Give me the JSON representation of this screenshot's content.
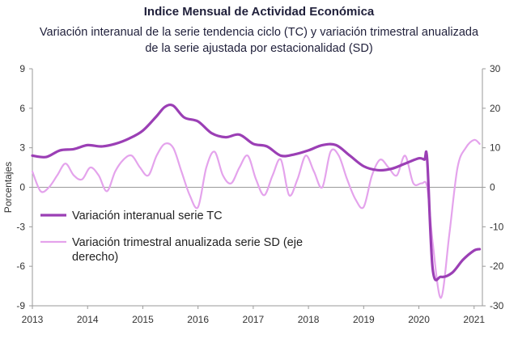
{
  "title": "Indice Mensual de  Actividad Económica",
  "subtitle_line1": "Variación interanual de la serie tendencia ciclo (TC) y variación trimestral anualizada",
  "subtitle_line2": "de la serie ajustada por estacionalidad (SD)",
  "chart_data": {
    "type": "line",
    "ylabel": "Porcentajes",
    "ylim": [
      -9,
      9
    ],
    "y2lim": [
      -30,
      30
    ],
    "y_ticks": [
      "9",
      "6",
      "3",
      "0",
      "-3",
      "-6",
      "-9"
    ],
    "y2_ticks": [
      "30",
      "20",
      "10",
      "0",
      "-10",
      "-20",
      "-30"
    ],
    "x_ticks": [
      "2013",
      "2014",
      "2015",
      "2016",
      "2017",
      "2018",
      "2019",
      "2020",
      "2021"
    ],
    "legend_position": "left-middle",
    "series": [
      {
        "name": "Variación interanual serie TC",
        "axis": "left",
        "color": "#9b3fb5",
        "x": [
          2013.0,
          2013.25,
          2013.5,
          2013.75,
          2014.0,
          2014.25,
          2014.5,
          2014.75,
          2015.0,
          2015.25,
          2015.4,
          2015.55,
          2015.75,
          2016.0,
          2016.25,
          2016.5,
          2016.75,
          2017.0,
          2017.25,
          2017.5,
          2017.75,
          2018.0,
          2018.25,
          2018.5,
          2018.75,
          2019.0,
          2019.25,
          2019.5,
          2019.75,
          2020.0,
          2020.1,
          2020.15,
          2020.25,
          2020.4,
          2020.6,
          2020.8,
          2021.0,
          2021.1
        ],
        "values": [
          2.4,
          2.3,
          2.8,
          2.9,
          3.2,
          3.1,
          3.3,
          3.7,
          4.3,
          5.4,
          6.1,
          6.2,
          5.3,
          5.0,
          4.1,
          3.8,
          4.0,
          3.3,
          3.1,
          2.4,
          2.5,
          2.8,
          3.2,
          3.2,
          2.4,
          1.6,
          1.3,
          1.4,
          1.8,
          2.2,
          2.1,
          2.1,
          -6.2,
          -6.8,
          -6.5,
          -5.5,
          -4.8,
          -4.7
        ]
      },
      {
        "name": "Variación trimestral anualizada serie SD (eje derecho)",
        "axis": "right",
        "color": "#e4a3ec",
        "x": [
          2013.0,
          2013.15,
          2013.3,
          2013.45,
          2013.6,
          2013.75,
          2013.9,
          2014.05,
          2014.2,
          2014.35,
          2014.5,
          2014.65,
          2014.8,
          2014.95,
          2015.1,
          2015.25,
          2015.4,
          2015.55,
          2015.7,
          2015.85,
          2016.0,
          2016.15,
          2016.3,
          2016.45,
          2016.6,
          2016.75,
          2016.9,
          2017.05,
          2017.2,
          2017.35,
          2017.5,
          2017.65,
          2017.8,
          2017.95,
          2018.1,
          2018.25,
          2018.4,
          2018.55,
          2018.7,
          2018.85,
          2019.0,
          2019.15,
          2019.3,
          2019.45,
          2019.6,
          2019.75,
          2019.9,
          2020.05,
          2020.15,
          2020.25,
          2020.4,
          2020.55,
          2020.7,
          2020.85,
          2021.0,
          2021.1
        ],
        "values": [
          4,
          -1,
          0,
          3,
          6,
          3,
          2,
          5,
          3,
          -1,
          4,
          7,
          8,
          5,
          3,
          8,
          11,
          10,
          4,
          -2,
          -5,
          5,
          9,
          3,
          1,
          5,
          8,
          2,
          -2,
          3,
          7,
          -2,
          2,
          8,
          4,
          0,
          9,
          8,
          2,
          -3,
          -5,
          3,
          7,
          5,
          3,
          8,
          1,
          1,
          0,
          -14,
          -28,
          -12,
          5,
          10,
          12,
          11
        ]
      }
    ]
  }
}
